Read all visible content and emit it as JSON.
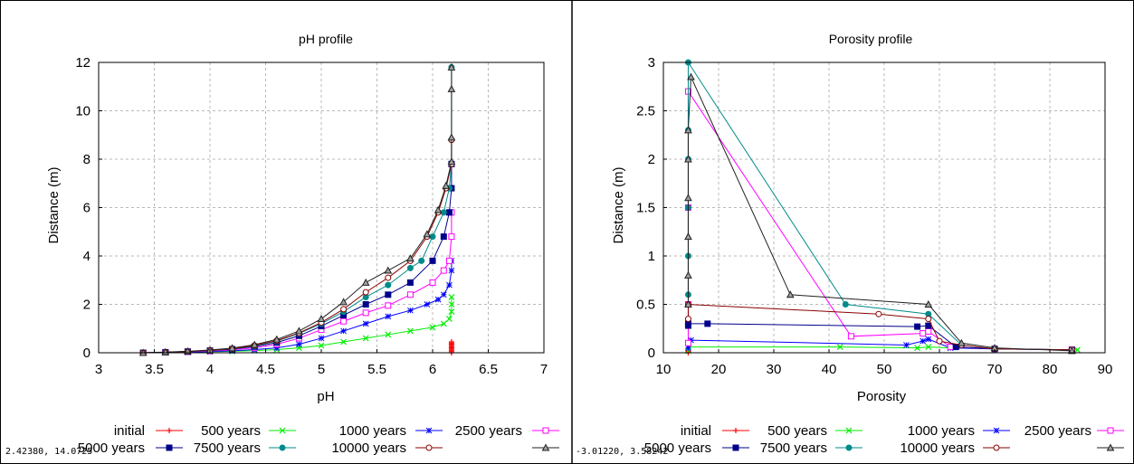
{
  "chart_data": [
    {
      "type": "line",
      "title": "pH profile",
      "xlabel": "pH",
      "ylabel": "Distance (m)",
      "xlim": [
        3,
        7
      ],
      "ylim": [
        0,
        12
      ],
      "xticks": [
        "3",
        "3.5",
        "4",
        "4.5",
        "5",
        "5.5",
        "6",
        "6.5",
        "7"
      ],
      "yticks": [
        "0",
        "2",
        "4",
        "6",
        "8",
        "10",
        "12"
      ],
      "grid": true,
      "legend_position": "bottom",
      "coord_readout": "2.42380, 14.0725",
      "series": [
        {
          "name": "initial",
          "color": "#ff0000",
          "marker": "plus",
          "x": [
            6.17,
            6.17,
            6.17,
            6.17,
            6.17,
            6.17,
            6.17,
            6.17,
            6.17,
            6.17
          ],
          "y": [
            0,
            0.05,
            0.1,
            0.15,
            0.2,
            0.25,
            0.3,
            0.35,
            0.4,
            0.45
          ]
        },
        {
          "name": "500 years",
          "color": "#00ee00",
          "marker": "x",
          "x": [
            3.4,
            3.6,
            3.8,
            4.0,
            4.2,
            4.4,
            4.6,
            4.8,
            5.0,
            5.2,
            5.4,
            5.6,
            5.8,
            6.0,
            6.1,
            6.15,
            6.17,
            6.17,
            6.17
          ],
          "y": [
            0,
            0.01,
            0.02,
            0.04,
            0.06,
            0.09,
            0.13,
            0.2,
            0.3,
            0.45,
            0.6,
            0.75,
            0.9,
            1.05,
            1.2,
            1.4,
            1.7,
            2.0,
            2.3
          ]
        },
        {
          "name": "1000 years",
          "color": "#0000ff",
          "marker": "star",
          "x": [
            3.4,
            3.6,
            3.8,
            4.0,
            4.2,
            4.4,
            4.6,
            4.8,
            5.0,
            5.2,
            5.4,
            5.6,
            5.8,
            5.95,
            6.05,
            6.1,
            6.15,
            6.17,
            6.17
          ],
          "y": [
            0,
            0.01,
            0.02,
            0.05,
            0.08,
            0.13,
            0.2,
            0.35,
            0.6,
            0.9,
            1.2,
            1.5,
            1.75,
            2.0,
            2.2,
            2.4,
            2.8,
            3.4,
            3.8
          ]
        },
        {
          "name": "2500 years",
          "color": "#ff00ff",
          "marker": "square",
          "x": [
            3.4,
            3.6,
            3.8,
            4.0,
            4.2,
            4.4,
            4.6,
            4.8,
            5.0,
            5.2,
            5.4,
            5.6,
            5.8,
            6.0,
            6.1,
            6.15,
            6.17,
            6.17
          ],
          "y": [
            0,
            0.02,
            0.04,
            0.07,
            0.12,
            0.2,
            0.35,
            0.6,
            0.95,
            1.3,
            1.65,
            1.95,
            2.4,
            2.9,
            3.4,
            3.8,
            4.8,
            5.8
          ]
        },
        {
          "name": "5000 years",
          "color": "#00008b",
          "marker": "square",
          "x": [
            3.4,
            3.6,
            3.8,
            4.0,
            4.2,
            4.4,
            4.6,
            4.8,
            5.0,
            5.2,
            5.4,
            5.6,
            5.8,
            6.0,
            6.1,
            6.15,
            6.17,
            6.17
          ],
          "y": [
            0,
            0.02,
            0.05,
            0.09,
            0.15,
            0.25,
            0.42,
            0.7,
            1.1,
            1.55,
            2.0,
            2.4,
            2.9,
            3.8,
            4.8,
            5.8,
            6.8,
            7.8
          ]
        },
        {
          "name": "7500 years",
          "color": "#008b8b",
          "marker": "circle",
          "x": [
            3.4,
            3.6,
            3.8,
            4.0,
            4.2,
            4.4,
            4.6,
            4.8,
            5.0,
            5.2,
            5.4,
            5.6,
            5.8,
            5.9,
            6.0,
            6.1,
            6.15,
            6.17,
            6.17,
            6.17
          ],
          "y": [
            0,
            0.02,
            0.05,
            0.09,
            0.16,
            0.28,
            0.48,
            0.8,
            1.2,
            1.7,
            2.3,
            2.8,
            3.5,
            3.8,
            4.8,
            5.8,
            6.8,
            7.8,
            8.8,
            11.8
          ]
        },
        {
          "name": "10000 years",
          "color": "#8b0000",
          "marker": "circle-open",
          "x": [
            3.4,
            3.6,
            3.8,
            4.0,
            4.2,
            4.4,
            4.6,
            4.8,
            5.0,
            5.2,
            5.4,
            5.6,
            5.8,
            5.95,
            6.05,
            6.12,
            6.17,
            6.17
          ],
          "y": [
            0,
            0.02,
            0.05,
            0.1,
            0.17,
            0.3,
            0.5,
            0.82,
            1.25,
            1.8,
            2.5,
            3.1,
            3.8,
            4.8,
            5.8,
            6.8,
            7.8,
            8.8
          ]
        },
        {
          "name": "",
          "color": "#202020",
          "marker": "triangle",
          "x": [
            3.4,
            3.6,
            3.8,
            4.0,
            4.2,
            4.4,
            4.6,
            4.8,
            5.0,
            5.2,
            5.4,
            5.6,
            5.8,
            5.95,
            6.05,
            6.12,
            6.17,
            6.17,
            6.17,
            6.17
          ],
          "y": [
            0,
            0.03,
            0.06,
            0.11,
            0.19,
            0.33,
            0.55,
            0.9,
            1.4,
            2.1,
            2.9,
            3.4,
            3.9,
            4.9,
            5.9,
            6.9,
            7.9,
            8.9,
            10.9,
            11.8
          ]
        }
      ]
    },
    {
      "type": "line",
      "title": "Porosity profile",
      "xlabel": "Porosity",
      "ylabel": "Distance (m)",
      "xlim": [
        10,
        90
      ],
      "ylim": [
        0,
        3
      ],
      "xticks": [
        "10",
        "20",
        "30",
        "40",
        "50",
        "60",
        "70",
        "80",
        "90"
      ],
      "yticks": [
        "0",
        "0.5",
        "1",
        "1.5",
        "2",
        "2.5",
        "3"
      ],
      "grid": true,
      "legend_position": "bottom",
      "coord_readout": "-3.01220, 3.58242",
      "series": [
        {
          "name": "initial",
          "color": "#ff0000",
          "marker": "plus",
          "x": [
            14.5,
            14.5,
            14.5
          ],
          "y": [
            0,
            0.01,
            0.02
          ]
        },
        {
          "name": "500 years",
          "color": "#00ee00",
          "marker": "x",
          "x": [
            14.5,
            14.5,
            42,
            56,
            58,
            62,
            70,
            85
          ],
          "y": [
            0.02,
            0.06,
            0.06,
            0.05,
            0.06,
            0.05,
            0.04,
            0.03
          ]
        },
        {
          "name": "1000 years",
          "color": "#0000ff",
          "marker": "star",
          "x": [
            14.5,
            14.5,
            15,
            54,
            57,
            58,
            62,
            70,
            84
          ],
          "y": [
            0.05,
            0.1,
            0.13,
            0.08,
            0.12,
            0.14,
            0.05,
            0.04,
            0.03
          ]
        },
        {
          "name": "2500 years",
          "color": "#ff00ff",
          "marker": "square",
          "x": [
            14.5,
            14.5,
            14.5,
            14.5,
            44,
            57,
            58,
            62,
            70,
            84
          ],
          "y": [
            0.1,
            0.5,
            1.5,
            2.7,
            0.17,
            0.2,
            0.22,
            0.06,
            0.04,
            0.03
          ]
        },
        {
          "name": "5000 years",
          "color": "#00008b",
          "marker": "square",
          "x": [
            14.5,
            14.5,
            18,
            56,
            58,
            63,
            70,
            84
          ],
          "y": [
            0.28,
            0.3,
            0.3,
            0.27,
            0.28,
            0.06,
            0.04,
            0.03
          ]
        },
        {
          "name": "7500 years",
          "color": "#008b8b",
          "marker": "circle",
          "x": [
            14.5,
            14.5,
            14.5,
            14.5,
            14.5,
            14.5,
            43,
            58,
            64,
            70,
            84
          ],
          "y": [
            0.6,
            1.0,
            1.5,
            2.0,
            2.3,
            3.0,
            0.5,
            0.4,
            0.08,
            0.04,
            0.03
          ]
        },
        {
          "name": "10000 years",
          "color": "#8b0000",
          "marker": "circle-open",
          "x": [
            14.5,
            14.5,
            49,
            58,
            60,
            64,
            70,
            84
          ],
          "y": [
            0.35,
            0.5,
            0.4,
            0.35,
            0.12,
            0.08,
            0.04,
            0.03
          ]
        },
        {
          "name": "",
          "color": "#202020",
          "marker": "triangle",
          "x": [
            14.5,
            14.5,
            14.5,
            14.5,
            14.5,
            14.5,
            15,
            33,
            58,
            64,
            70,
            84
          ],
          "y": [
            0.5,
            0.8,
            1.2,
            1.6,
            2.0,
            2.3,
            2.85,
            0.6,
            0.5,
            0.1,
            0.05,
            0.02
          ]
        }
      ]
    }
  ]
}
